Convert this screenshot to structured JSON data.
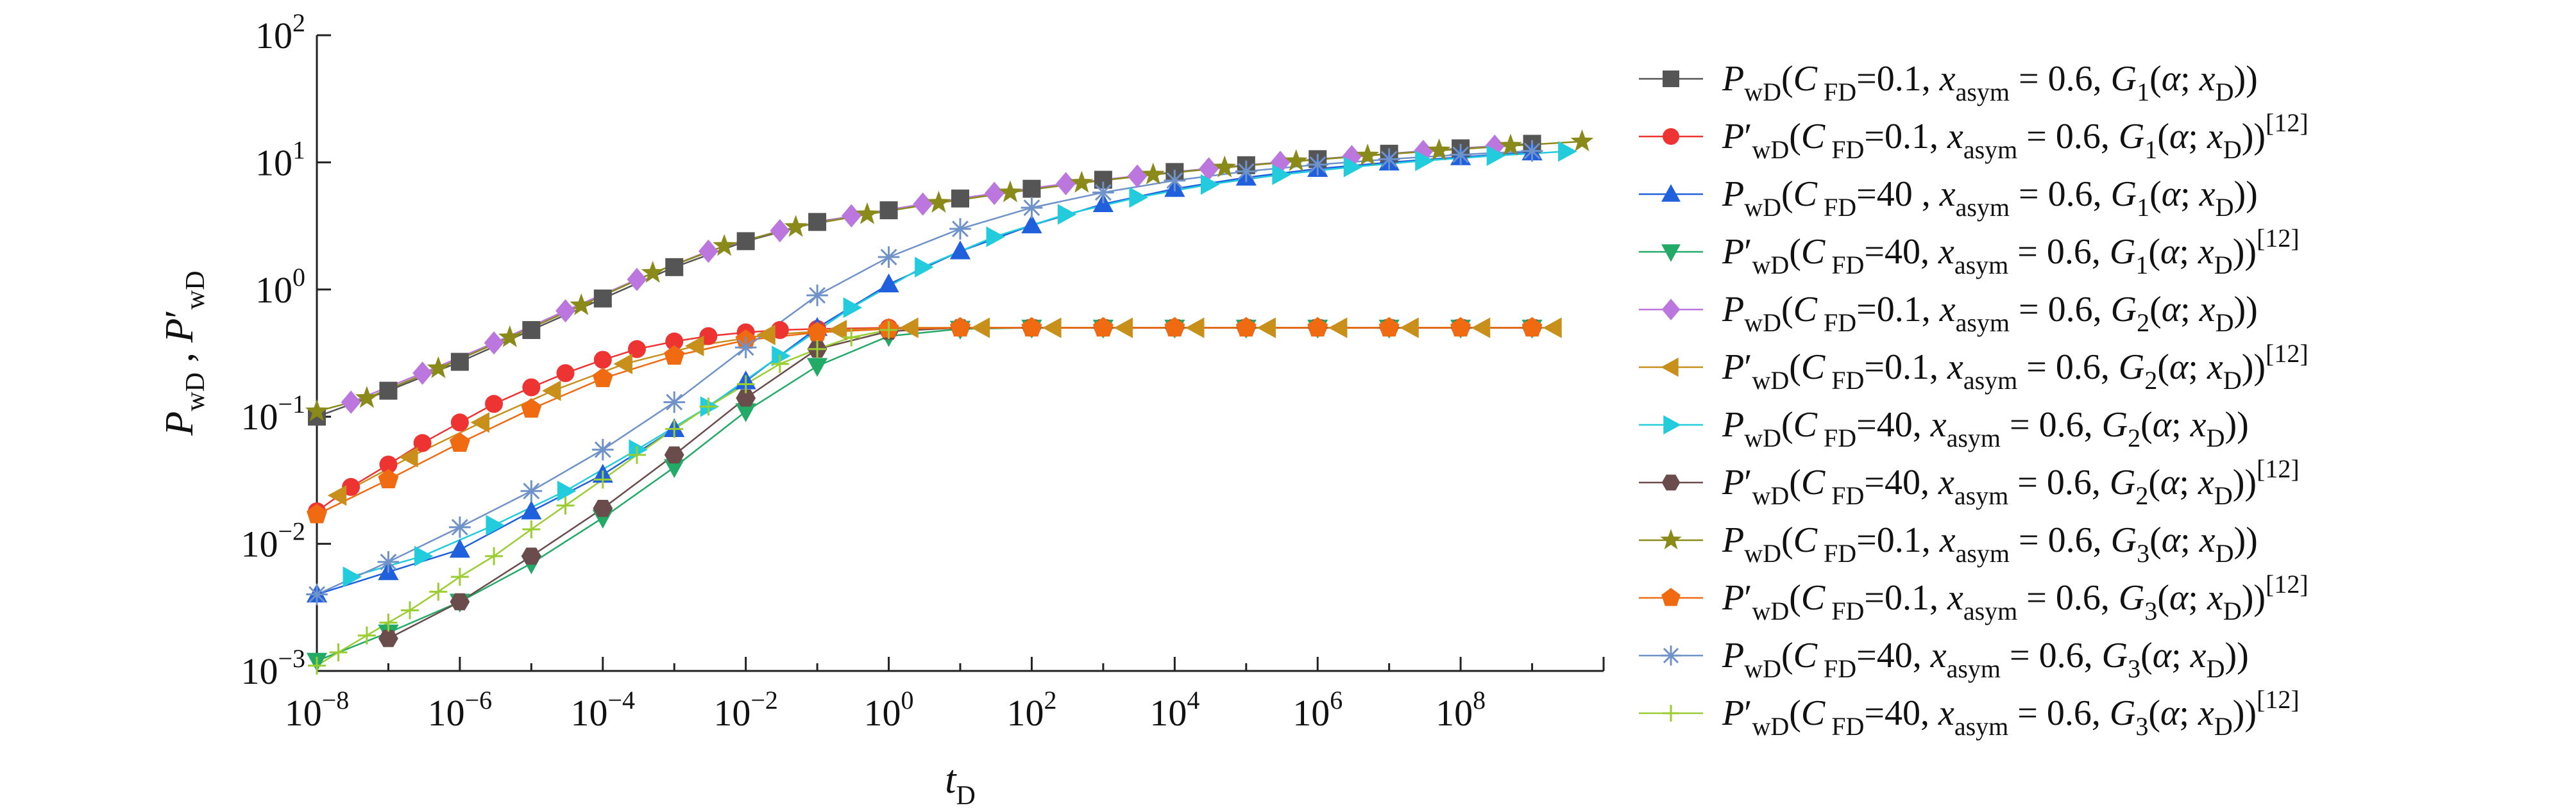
{
  "chart_data": {
    "type": "line",
    "title": "",
    "xlabel": "t",
    "xlabel_sub": "D",
    "ylabel_parts": [
      {
        "t": "P",
        "italic": true
      },
      {
        "t": "wD",
        "sub": true
      },
      {
        "t": " , ",
        "italic": false
      },
      {
        "t": "P",
        "italic": true
      },
      {
        "t": "′",
        "italic": false
      },
      {
        "t": "wD",
        "sub": true
      }
    ],
    "xscale": "log",
    "yscale": "log",
    "xlim": [
      1e-08,
      10000000000.0
    ],
    "ylim": [
      0.001,
      100
    ],
    "grid": false,
    "legend_position": "right",
    "x_ticks": [
      {
        "value": 1e-08,
        "base": "10",
        "exp": "−8"
      },
      {
        "value": 1e-06,
        "base": "10",
        "exp": "−6"
      },
      {
        "value": 0.0001,
        "base": "10",
        "exp": "−4"
      },
      {
        "value": 0.01,
        "base": "10",
        "exp": "−2"
      },
      {
        "value": 1.0,
        "base": "10",
        "exp": "0"
      },
      {
        "value": 100.0,
        "base": "10",
        "exp": "2"
      },
      {
        "value": 10000.0,
        "base": "10",
        "exp": "4"
      },
      {
        "value": 1000000.0,
        "base": "10",
        "exp": "6"
      },
      {
        "value": 100000000.0,
        "base": "10",
        "exp": "8"
      }
    ],
    "y_ticks": [
      {
        "value": 0.001,
        "base": "10",
        "exp": "−3"
      },
      {
        "value": 0.01,
        "base": "10",
        "exp": "−2"
      },
      {
        "value": 0.1,
        "base": "10",
        "exp": "−1"
      },
      {
        "value": 1,
        "base": "10",
        "exp": "0"
      },
      {
        "value": 10,
        "base": "10",
        "exp": "1"
      },
      {
        "value": 100,
        "base": "10",
        "exp": "2"
      }
    ],
    "series": [
      {
        "label_var": "P",
        "label_prime": "",
        "label_cfd": "0.1",
        "label_cfd_sep": ", ",
        "label_g": "1",
        "label_ref": "",
        "color": "#555555",
        "marker": "square",
        "x": [
          1e-08,
          1e-07,
          1e-06,
          1e-05,
          0.0001,
          0.001,
          0.01,
          0.1,
          1,
          10,
          100,
          1000.0,
          10000.0,
          100000.0,
          1000000.0,
          10000000.0,
          100000000.0,
          1000000000.0
        ],
        "y": [
          0.1,
          0.16,
          0.27,
          0.48,
          0.85,
          1.5,
          2.4,
          3.4,
          4.2,
          5.2,
          6.2,
          7.3,
          8.4,
          9.5,
          10.6,
          11.7,
          12.9,
          14.0
        ]
      },
      {
        "label_var": "P",
        "label_prime": "′",
        "label_cfd": "0.1",
        "label_cfd_sep": ", ",
        "label_g": "1",
        "label_ref": "[12]",
        "color": "#ee3333",
        "marker": "circle",
        "x": [
          1e-08,
          3e-08,
          1e-07,
          3e-07,
          1e-06,
          3e-06,
          1e-05,
          3e-05,
          0.0001,
          0.0003,
          0.001,
          0.003,
          0.01,
          0.03,
          0.1,
          1,
          10,
          100,
          1000.0,
          10000.0,
          100000.0,
          1000000.0,
          10000000.0,
          100000000.0,
          1000000000.0
        ],
        "y": [
          0.018,
          0.028,
          0.042,
          0.062,
          0.09,
          0.126,
          0.17,
          0.22,
          0.28,
          0.34,
          0.39,
          0.43,
          0.46,
          0.48,
          0.49,
          0.5,
          0.5,
          0.5,
          0.5,
          0.5,
          0.5,
          0.5,
          0.5,
          0.5,
          0.5
        ]
      },
      {
        "label_var": "P",
        "label_prime": "",
        "label_cfd": "40",
        "label_cfd_sep": " , ",
        "label_g": "1",
        "label_ref": "",
        "color": "#2060dd",
        "marker": "triangle-up",
        "x": [
          1e-08,
          1e-07,
          1e-06,
          1e-05,
          0.0001,
          0.001,
          0.01,
          0.1,
          1,
          10,
          100,
          1000.0,
          10000.0,
          100000.0,
          1000000.0,
          10000000.0,
          100000000.0,
          1000000000.0
        ],
        "y": [
          0.004,
          0.006,
          0.009,
          0.018,
          0.035,
          0.08,
          0.19,
          0.5,
          1.1,
          2.0,
          3.2,
          4.7,
          6.2,
          7.6,
          8.9,
          10.0,
          11.0,
          12.0
        ]
      },
      {
        "label_var": "P",
        "label_prime": "′",
        "label_cfd": "40",
        "label_cfd_sep": ", ",
        "label_g": "1",
        "label_ref": "[12]",
        "color": "#22aa66",
        "marker": "triangle-down",
        "x": [
          1e-08,
          1e-07,
          1e-06,
          1e-05,
          0.0001,
          0.001,
          0.01,
          0.1,
          1,
          10,
          100,
          1000.0,
          10000.0,
          100000.0,
          1000000.0,
          10000000.0,
          100000000.0,
          1000000000.0
        ],
        "y": [
          0.0012,
          0.002,
          0.0035,
          0.007,
          0.016,
          0.04,
          0.11,
          0.25,
          0.43,
          0.49,
          0.5,
          0.5,
          0.5,
          0.5,
          0.5,
          0.5,
          0.5,
          0.5
        ]
      },
      {
        "label_var": "P",
        "label_prime": "",
        "label_cfd": "0.1",
        "label_cfd_sep": ", ",
        "label_g": "2",
        "label_ref": "",
        "color": "#bb77dd",
        "marker": "diamond",
        "x": [
          3e-08,
          3e-07,
          3e-06,
          3e-05,
          0.0003,
          0.003,
          0.03,
          0.3,
          3,
          30,
          300,
          3000.0,
          30000.0,
          300000.0,
          3000000.0,
          30000000.0,
          300000000.0
        ],
        "y": [
          0.13,
          0.22,
          0.38,
          0.68,
          1.2,
          2.0,
          2.9,
          3.8,
          4.7,
          5.7,
          6.8,
          7.8,
          8.9,
          10.0,
          11.1,
          12.2,
          13.4
        ]
      },
      {
        "label_var": "P",
        "label_prime": "′",
        "label_cfd": "0.1",
        "label_cfd_sep": ", ",
        "label_g": "2",
        "label_ref": "[12]",
        "color": "#c8901a",
        "marker": "triangle-left",
        "x": [
          2e-08,
          2e-07,
          2e-06,
          2e-05,
          0.0002,
          0.002,
          0.02,
          0.2,
          2,
          20,
          200,
          2000.0,
          20000.0,
          200000.0,
          2000000.0,
          20000000.0,
          200000000.0,
          2000000000.0
        ],
        "y": [
          0.024,
          0.048,
          0.09,
          0.16,
          0.26,
          0.36,
          0.44,
          0.48,
          0.5,
          0.5,
          0.5,
          0.5,
          0.5,
          0.5,
          0.5,
          0.5,
          0.5,
          0.5
        ]
      },
      {
        "label_var": "P",
        "label_prime": "",
        "label_cfd": "40",
        "label_cfd_sep": ", ",
        "label_g": "2",
        "label_ref": "",
        "color": "#22ccdd",
        "marker": "triangle-right",
        "x": [
          3e-08,
          3e-07,
          3e-06,
          3e-05,
          0.0003,
          0.003,
          0.03,
          0.3,
          3,
          30,
          300,
          3000.0,
          30000.0,
          300000.0,
          3000000.0,
          30000000.0,
          300000000.0,
          3000000000.0
        ],
        "y": [
          0.0055,
          0.008,
          0.014,
          0.026,
          0.055,
          0.12,
          0.3,
          0.72,
          1.5,
          2.6,
          3.9,
          5.3,
          6.7,
          8.0,
          9.2,
          10.3,
          11.3,
          12.2
        ]
      },
      {
        "label_var": "P",
        "label_prime": "′",
        "label_cfd": "40",
        "label_cfd_sep": ", ",
        "label_g": "2",
        "label_ref": "[12]",
        "color": "#6b4c4c",
        "marker": "hexagon",
        "x": [
          1e-07,
          1e-06,
          1e-05,
          0.0001,
          0.001,
          0.01,
          0.1,
          1,
          10,
          100,
          1000.0,
          10000.0,
          100000.0,
          1000000.0,
          10000000.0,
          100000000.0,
          1000000000.0
        ],
        "y": [
          0.0018,
          0.0035,
          0.008,
          0.019,
          0.05,
          0.14,
          0.34,
          0.47,
          0.5,
          0.5,
          0.5,
          0.5,
          0.5,
          0.5,
          0.5,
          0.5,
          0.5
        ]
      },
      {
        "label_var": "P",
        "label_prime": "",
        "label_cfd": "0.1",
        "label_cfd_sep": ", ",
        "label_g": "3",
        "label_ref": "",
        "color": "#8a8a1a",
        "marker": "star",
        "x": [
          1e-08,
          5e-08,
          5e-07,
          5e-06,
          5e-05,
          0.0005,
          0.005,
          0.05,
          0.5,
          5,
          50,
          500,
          5000.0,
          50000.0,
          500000.0,
          5000000.0,
          50000000.0,
          500000000.0,
          5000000000.0
        ],
        "y": [
          0.11,
          0.14,
          0.24,
          0.42,
          0.75,
          1.35,
          2.2,
          3.1,
          3.9,
          4.8,
          5.8,
          6.9,
          8.0,
          9.1,
          10.2,
          11.3,
          12.4,
          13.5,
          14.6
        ]
      },
      {
        "label_var": "P",
        "label_prime": "′",
        "label_cfd": "0.1",
        "label_cfd_sep": ", ",
        "label_g": "3",
        "label_ref": "[12]",
        "color": "#f06a12",
        "marker": "pentagon",
        "x": [
          1e-08,
          1e-07,
          1e-06,
          1e-05,
          0.0001,
          0.001,
          0.01,
          0.1,
          1,
          10,
          100,
          1000.0,
          10000.0,
          100000.0,
          1000000.0,
          10000000.0,
          100000000.0,
          1000000000.0
        ],
        "y": [
          0.017,
          0.032,
          0.062,
          0.115,
          0.2,
          0.3,
          0.4,
          0.46,
          0.49,
          0.5,
          0.5,
          0.5,
          0.5,
          0.5,
          0.5,
          0.5,
          0.5,
          0.5
        ]
      },
      {
        "label_var": "P",
        "label_prime": "",
        "label_cfd": "40",
        "label_cfd_sep": ", ",
        "label_g": "3",
        "label_ref": "",
        "color": "#6f92c8",
        "marker": "asterisk",
        "x": [
          1e-08,
          1e-07,
          1e-06,
          1e-05,
          0.0001,
          0.001,
          0.01,
          0.1,
          1,
          10,
          100,
          1000.0,
          10000.0,
          100000.0,
          1000000.0,
          10000000.0,
          100000000.0,
          1000000000.0
        ],
        "y": [
          0.004,
          0.0072,
          0.0135,
          0.026,
          0.055,
          0.13,
          0.35,
          0.9,
          1.8,
          3.0,
          4.4,
          5.8,
          7.2,
          8.5,
          9.6,
          10.6,
          11.5,
          12.3
        ]
      },
      {
        "label_var": "P",
        "label_prime": "′",
        "label_cfd": "40",
        "label_cfd_sep": ", ",
        "label_g": "3",
        "label_ref": "[12]",
        "color": "#9acd32",
        "marker": "plus",
        "x": [
          1e-08,
          2e-08,
          5e-08,
          1e-07,
          2e-07,
          5e-07,
          1e-06,
          3e-06,
          1e-05,
          3e-05,
          0.0001,
          0.0003,
          0.001,
          0.003,
          0.01,
          0.03,
          0.1,
          0.3,
          1
        ],
        "y": [
          0.0011,
          0.0014,
          0.0019,
          0.0024,
          0.003,
          0.0042,
          0.0055,
          0.008,
          0.013,
          0.02,
          0.032,
          0.05,
          0.08,
          0.12,
          0.18,
          0.26,
          0.34,
          0.42,
          0.48
        ]
      }
    ]
  }
}
